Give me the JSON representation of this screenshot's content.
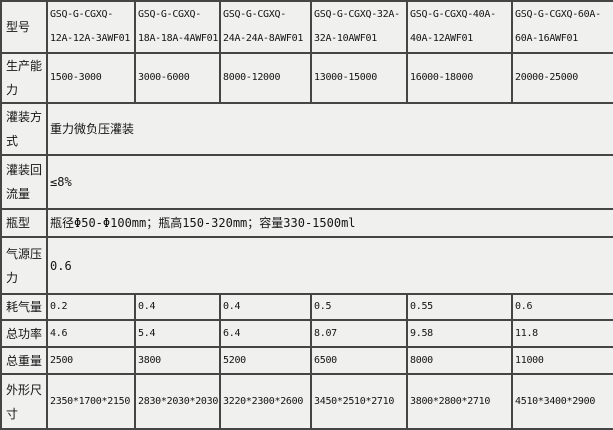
{
  "colors": {
    "background": "#f0f0ef",
    "border": "#454545",
    "text": "#141414"
  },
  "table": {
    "rows": [
      {
        "label": "型号",
        "cells": [
          "GSQ-G-CGXQ-\n12A-12A-3AWF01",
          "GSQ-G-CGXQ-\n18A-18A-4AWF01",
          "GSQ-G-CGXQ-\n24A-24A-8AWF01",
          "GSQ-G-CGXQ-32A-\n32A-10AWF01",
          "GSQ-G-CGXQ-40A-\n40A-12AWF01",
          "GSQ-G-CGXQ-60A-\n60A-16AWF01"
        ]
      },
      {
        "label": "生产能力",
        "cells": [
          "1500-3000",
          "3000-6000",
          "8000-12000",
          "13000-15000",
          "16000-18000",
          "20000-25000"
        ]
      },
      {
        "label": "灌装方式",
        "span": "重力微负压灌装"
      },
      {
        "label": "灌装回流量",
        "span": "≤8%"
      },
      {
        "label": "瓶型",
        "span": "瓶径Φ50-Φ100mm；瓶高150-320mm；容量330-1500ml"
      },
      {
        "label": "气源压力",
        "span": "0.6"
      },
      {
        "label": "耗气量",
        "cells": [
          "0.2",
          "0.4",
          "0.4",
          "0.5",
          "0.55",
          "0.6"
        ]
      },
      {
        "label": "总功率",
        "cells": [
          "4.6",
          "5.4",
          "6.4",
          "8.07",
          "9.58",
          "11.8"
        ]
      },
      {
        "label": "总重量",
        "cells": [
          "2500",
          "3800",
          "5200",
          "6500",
          "8000",
          "11000"
        ]
      },
      {
        "label": "外形尺寸",
        "cells": [
          "2350*1700*2150",
          "2830*2030*2030",
          "3220*2300*2600",
          "3450*2510*2710",
          "3800*2800*2710",
          "4510*3400*2900"
        ]
      }
    ]
  }
}
